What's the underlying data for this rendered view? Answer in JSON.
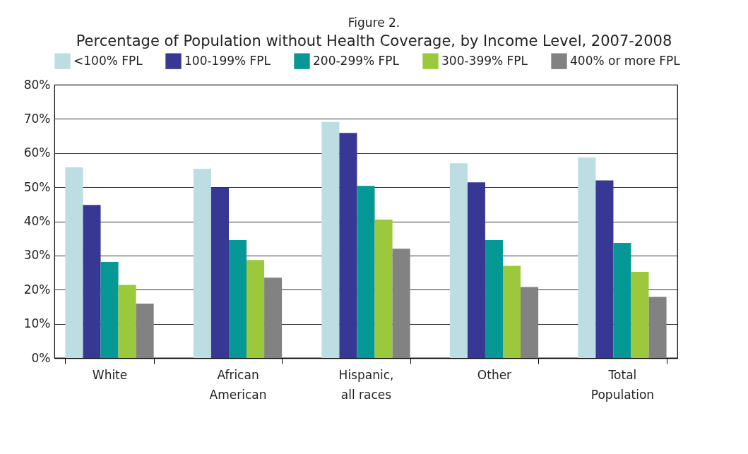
{
  "chart_data": {
    "type": "bar",
    "title": "Percentage of Population without Health Coverage, by Income Level, 2007-2008",
    "subtitle": "Figure 2.",
    "categories": [
      "White",
      "African American",
      "Hispanic, all races",
      "Other",
      "Total Population"
    ],
    "series": [
      {
        "name": "<100% FPL",
        "color": "#bcdde2",
        "values": [
          55.8,
          55.4,
          69.1,
          57.0,
          58.7
        ]
      },
      {
        "name": "100-199% FPL",
        "color": "#373893",
        "values": [
          44.8,
          49.8,
          65.9,
          51.4,
          52.0
        ]
      },
      {
        "name": "200-299% FPL",
        "color": "#059896",
        "values": [
          28.1,
          34.5,
          50.4,
          34.5,
          33.7
        ]
      },
      {
        "name": "300-399% FPL",
        "color": "#9bc93b",
        "values": [
          21.4,
          28.7,
          40.5,
          27.0,
          25.2
        ]
      },
      {
        "name": "400% or more FPL",
        "color": "#828282",
        "values": [
          15.9,
          23.5,
          32.0,
          20.8,
          17.9
        ]
      }
    ],
    "ylim": [
      0,
      80
    ],
    "yticks": [
      {
        "value": 0,
        "label": "0%"
      },
      {
        "value": 10,
        "label": "10%"
      },
      {
        "value": 20,
        "label": "20%"
      },
      {
        "value": 30,
        "label": "30%"
      },
      {
        "value": 40,
        "label": "40%"
      },
      {
        "value": 50,
        "label": "50%"
      },
      {
        "value": 60,
        "label": "60%"
      },
      {
        "value": 70,
        "label": "70%"
      },
      {
        "value": 80,
        "label": "80%"
      }
    ],
    "grid": "y",
    "legend": "top"
  }
}
